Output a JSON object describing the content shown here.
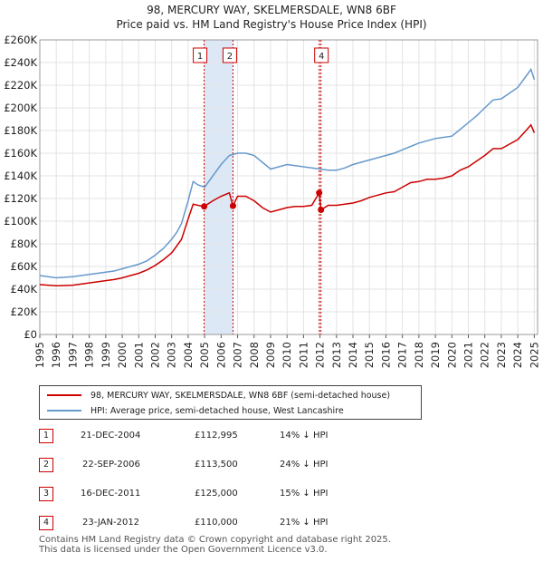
{
  "header": {
    "title_line1": "98, MERCURY WAY, SKELMERSDALE, WN8 6BF",
    "title_line2": "Price paid vs. HM Land Registry's House Price Index (HPI)"
  },
  "legend": {
    "items": [
      {
        "label": "98, MERCURY WAY, SKELMERSDALE, WN8 6BF (semi-detached house)",
        "color": "#cc0000"
      },
      {
        "label": "HPI: Average price, semi-detached house, West Lancashire",
        "color": "#6699cc"
      }
    ]
  },
  "sales": [
    {
      "id": "1",
      "date": "21-DEC-2004",
      "price": "£112,995",
      "hpi": "14% ↓ HPI"
    },
    {
      "id": "2",
      "date": "22-SEP-2006",
      "price": "£113,500",
      "hpi": "24% ↓ HPI"
    },
    {
      "id": "3",
      "date": "16-DEC-2011",
      "price": "£125,000",
      "hpi": "15% ↓ HPI"
    },
    {
      "id": "4",
      "date": "23-JAN-2012",
      "price": "£110,000",
      "hpi": "21% ↓ HPI"
    }
  ],
  "footer": {
    "line1": "Contains HM Land Registry data © Crown copyright and database right 2025.",
    "line2": "This data is licensed under the Open Government Licence v3.0."
  },
  "chart_data": {
    "type": "line",
    "title": "98, MERCURY WAY, SKELMERSDALE, WN8 6BF",
    "subtitle": "Price paid vs. HM Land Registry's House Price Index (HPI)",
    "xlabel": "",
    "ylabel": "",
    "xlim": [
      1995,
      2025.2
    ],
    "ylim": [
      0,
      260000
    ],
    "y_ticks": [
      0,
      20000,
      40000,
      60000,
      80000,
      100000,
      120000,
      140000,
      160000,
      180000,
      200000,
      220000,
      240000,
      260000
    ],
    "y_tick_labels": [
      "£0",
      "£20K",
      "£40K",
      "£60K",
      "£80K",
      "£100K",
      "£120K",
      "£140K",
      "£160K",
      "£180K",
      "£200K",
      "£220K",
      "£240K",
      "£260K"
    ],
    "x_ticks": [
      1995,
      1996,
      1997,
      1998,
      1999,
      2000,
      2001,
      2002,
      2003,
      2004,
      2005,
      2006,
      2007,
      2008,
      2009,
      2010,
      2011,
      2012,
      2013,
      2014,
      2015,
      2016,
      2017,
      2018,
      2019,
      2020,
      2021,
      2022,
      2023,
      2024,
      2025
    ],
    "x_tick_labels": [
      "1995",
      "1996",
      "1997",
      "1998",
      "1999",
      "2000",
      "2001",
      "2002",
      "2003",
      "2004",
      "2005",
      "2006",
      "2007",
      "2008",
      "2009",
      "2010",
      "2011",
      "2012",
      "2013",
      "2014",
      "2015",
      "2016",
      "2017",
      "2018",
      "2019",
      "2020",
      "2021",
      "2022",
      "2023",
      "2024",
      "2025"
    ],
    "grid": true,
    "shaded_spans": [
      [
        2004.97,
        2006.72
      ]
    ],
    "series": [
      {
        "name": "HPI: Average price, semi-detached house, West Lancashire",
        "color": "#6699cc",
        "x": [
          1995,
          1995.5,
          1996,
          1996.5,
          1997,
          1997.5,
          1998,
          1998.5,
          1999,
          1999.5,
          2000,
          2000.5,
          2001,
          2001.5,
          2002,
          2002.5,
          2003,
          2003.3,
          2003.6,
          2004,
          2004.3,
          2004.6,
          2005,
          2005.5,
          2006,
          2006.5,
          2007,
          2007.5,
          2008,
          2008.5,
          2009,
          2009.5,
          2010,
          2010.5,
          2011,
          2011.5,
          2012,
          2012.5,
          2013,
          2013.5,
          2014,
          2014.5,
          2015,
          2015.5,
          2016,
          2016.5,
          2017,
          2017.5,
          2018,
          2018.5,
          2019,
          2019.5,
          2020,
          2020.5,
          2021,
          2021.5,
          2022,
          2022.5,
          2023,
          2023.5,
          2024,
          2024.5,
          2024.8,
          2025
        ],
        "values": [
          52000,
          51000,
          50000,
          50500,
          51000,
          52000,
          53000,
          54000,
          55000,
          56000,
          58000,
          60000,
          62000,
          65000,
          70000,
          76000,
          84000,
          90000,
          98000,
          118000,
          135000,
          132000,
          130000,
          140000,
          150000,
          158000,
          160000,
          160000,
          158000,
          152000,
          146000,
          148000,
          150000,
          149000,
          148000,
          147000,
          146000,
          145000,
          145000,
          147000,
          150000,
          152000,
          154000,
          156000,
          158000,
          160000,
          163000,
          166000,
          169000,
          171000,
          173000,
          174000,
          175000,
          181000,
          187000,
          193000,
          200000,
          207000,
          208000,
          213000,
          218000,
          228000,
          234000,
          225000
        ]
      },
      {
        "name": "98, MERCURY WAY, SKELMERSDALE, WN8 6BF (semi-detached house)",
        "color": "#cc0000",
        "x": [
          1995,
          1995.5,
          1996,
          1996.5,
          1997,
          1997.5,
          1998,
          1998.5,
          1999,
          1999.5,
          2000,
          2000.5,
          2001,
          2001.5,
          2002,
          2002.5,
          2003,
          2003.3,
          2003.6,
          2004,
          2004.3,
          2004.6,
          2004.97,
          2005.5,
          2006,
          2006.5,
          2006.72,
          2007,
          2007.5,
          2008,
          2008.5,
          2009,
          2009.5,
          2010,
          2010.5,
          2011,
          2011.5,
          2011.95,
          2012.06,
          2012.5,
          2013,
          2013.5,
          2014,
          2014.5,
          2015,
          2015.5,
          2016,
          2016.5,
          2017,
          2017.5,
          2018,
          2018.5,
          2019,
          2019.5,
          2020,
          2020.5,
          2021,
          2021.5,
          2022,
          2022.5,
          2023,
          2023.5,
          2024,
          2024.5,
          2024.8,
          2025
        ],
        "values": [
          44000,
          43500,
          43000,
          43200,
          43500,
          44500,
          45500,
          46500,
          47500,
          48500,
          50000,
          52000,
          54000,
          57000,
          61000,
          66000,
          72000,
          78000,
          84000,
          102000,
          115000,
          114000,
          112995,
          118000,
          122000,
          125000,
          113500,
          122000,
          122000,
          118000,
          112000,
          108000,
          110000,
          112000,
          113000,
          113000,
          114000,
          125000,
          110000,
          114000,
          114000,
          115000,
          116000,
          118000,
          121000,
          123000,
          125000,
          126000,
          130000,
          134000,
          135000,
          137000,
          137000,
          138000,
          140000,
          145000,
          148000,
          153000,
          158000,
          164000,
          164000,
          168000,
          172000,
          180000,
          185000,
          178000
        ]
      }
    ],
    "annotations": [
      {
        "label": "1",
        "x": 2004.97,
        "y": 112995
      },
      {
        "label": "2",
        "x": 2006.72,
        "y": 113500
      },
      {
        "label": "3",
        "x": 2011.95,
        "y": 125000
      },
      {
        "label": "4",
        "x": 2012.06,
        "y": 110000
      }
    ]
  }
}
